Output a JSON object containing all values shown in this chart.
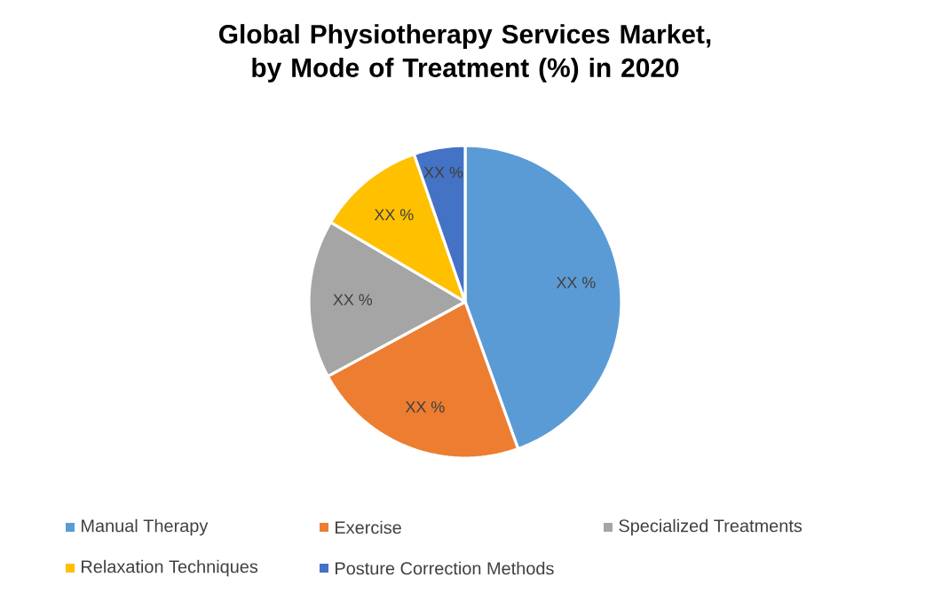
{
  "chart_data": {
    "type": "pie",
    "title": "Global Physiotherapy Services Market, by Mode of Treatment (%) in 2020",
    "categories": [
      "Manual Therapy",
      "Exercise",
      "Specialized Treatments",
      "Relaxation Techniques",
      "Posture Correction Methods"
    ],
    "values": [
      44.5,
      22.6,
      16.4,
      11.2,
      5.3
    ],
    "value_labels": [
      "XX %",
      "XX %",
      "XX %",
      "XX %",
      "XX %"
    ],
    "colors": [
      "#5b9bd5",
      "#ed7d31",
      "#a5a5a5",
      "#ffc000",
      "#4472c4"
    ],
    "legend": "bottom"
  }
}
